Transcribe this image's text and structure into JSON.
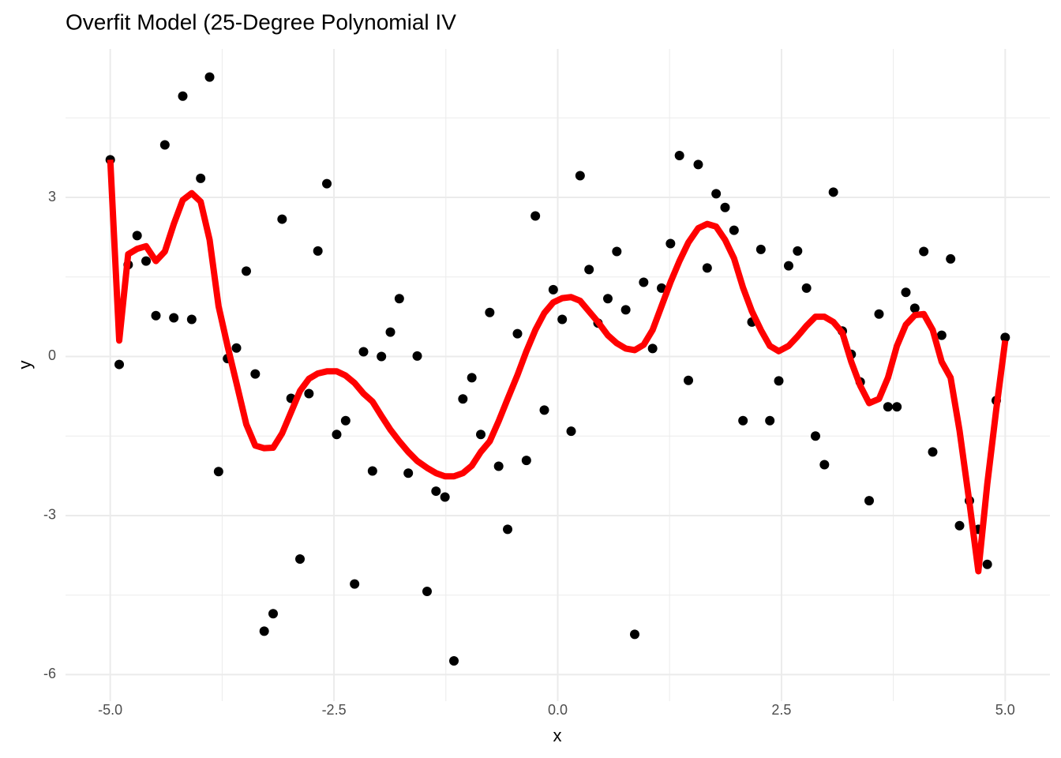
{
  "chart_data": {
    "type": "scatter",
    "title": "Overfit Model (25-Degree Polynomial IV",
    "x_label": "x",
    "y_label": "y",
    "x": [
      -5,
      -4.9,
      -4.8,
      -4.7,
      -4.6,
      -4.49,
      -4.39,
      -4.29,
      -4.19,
      -4.09,
      -3.99,
      -3.89,
      -3.79,
      -3.69,
      -3.59,
      -3.48,
      -3.38,
      -3.28,
      -3.18,
      -3.08,
      -2.98,
      -2.88,
      -2.78,
      -2.68,
      -2.58,
      -2.47,
      -2.37,
      -2.27,
      -2.17,
      -2.07,
      -1.97,
      -1.87,
      -1.77,
      -1.67,
      -1.57,
      -1.46,
      -1.36,
      -1.26,
      -1.16,
      -1.06,
      -0.96,
      -0.86,
      -0.76,
      -0.66,
      -0.56,
      -0.45,
      -0.35,
      -0.25,
      -0.15,
      -0.05,
      0.05,
      0.15,
      0.25,
      0.35,
      0.45,
      0.56,
      0.66,
      0.76,
      0.86,
      0.96,
      1.06,
      1.16,
      1.26,
      1.36,
      1.46,
      1.57,
      1.67,
      1.77,
      1.87,
      1.97,
      2.07,
      2.17,
      2.27,
      2.37,
      2.47,
      2.58,
      2.68,
      2.78,
      2.88,
      2.98,
      3.08,
      3.18,
      3.28,
      3.38,
      3.48,
      3.59,
      3.69,
      3.79,
      3.89,
      3.99,
      4.09,
      4.19,
      4.29,
      4.39,
      4.49,
      4.6,
      4.7,
      4.8,
      4.9,
      5
    ],
    "series": [
      {
        "type": "scatter",
        "color": "#000000",
        "values": [
          3.71,
          -0.15,
          1.73,
          2.28,
          1.8,
          0.77,
          3.99,
          0.73,
          4.91,
          0.7,
          3.36,
          5.27,
          -2.17,
          -0.04,
          0.16,
          1.61,
          -0.33,
          -5.18,
          -4.85,
          2.59,
          -0.79,
          -3.82,
          -0.7,
          1.99,
          3.26,
          -1.47,
          -1.21,
          -4.29,
          0.09,
          -2.16,
          0.0,
          0.46,
          1.09,
          -2.2,
          0.01,
          -4.43,
          -2.54,
          -2.65,
          -5.74,
          -0.8,
          -0.4,
          -1.47,
          0.83,
          -2.07,
          -3.26,
          0.43,
          -1.96,
          2.65,
          -1.01,
          1.26,
          0.7,
          -1.41,
          3.41,
          1.64,
          0.63,
          1.09,
          1.98,
          0.88,
          -5.24,
          1.4,
          0.15,
          1.29,
          2.13,
          3.79,
          -0.45,
          3.62,
          1.67,
          3.07,
          2.81,
          2.38,
          -1.21,
          0.65,
          2.02,
          -1.21,
          -0.46,
          1.71,
          1.99,
          1.29,
          -1.5,
          -2.04,
          3.1,
          0.48,
          0.04,
          -0.48,
          -2.72,
          0.8,
          -0.95,
          -0.95,
          1.21,
          0.91,
          1.98,
          -1.8,
          0.4,
          1.84,
          -3.19,
          -2.72,
          -3.26,
          -3.92,
          -0.83,
          0.36
        ]
      },
      {
        "type": "line",
        "color": "#ff0000",
        "values": [
          3.71,
          0.3,
          1.93,
          2.03,
          2.08,
          1.8,
          1.98,
          2.5,
          2.95,
          3.08,
          2.92,
          2.2,
          0.95,
          0.2,
          -0.5,
          -1.28,
          -1.68,
          -1.73,
          -1.72,
          -1.45,
          -1.05,
          -0.65,
          -0.42,
          -0.32,
          -0.28,
          -0.28,
          -0.36,
          -0.5,
          -0.7,
          -0.85,
          -1.12,
          -1.38,
          -1.6,
          -1.8,
          -1.97,
          -2.1,
          -2.2,
          -2.26,
          -2.26,
          -2.2,
          -2.06,
          -1.8,
          -1.6,
          -1.22,
          -0.8,
          -0.35,
          0.1,
          0.5,
          0.82,
          1.02,
          1.1,
          1.12,
          1.05,
          0.85,
          0.65,
          0.4,
          0.25,
          0.15,
          0.12,
          0.22,
          0.5,
          0.95,
          1.4,
          1.8,
          2.15,
          2.42,
          2.5,
          2.45,
          2.2,
          1.85,
          1.3,
          0.85,
          0.5,
          0.2,
          0.1,
          0.2,
          0.38,
          0.58,
          0.75,
          0.75,
          0.65,
          0.45,
          -0.1,
          -0.55,
          -0.88,
          -0.8,
          -0.4,
          0.2,
          0.6,
          0.78,
          0.8,
          0.5,
          -0.1,
          -0.4,
          -1.4,
          -2.75,
          -4.05,
          -2.4,
          -1.0,
          0.3
        ]
      }
    ],
    "xlim": [
      -5.5,
      5.5
    ],
    "ylim": [
      -6.5,
      5.8
    ],
    "xticks": [
      {
        "value": -5,
        "label": "-5.0"
      },
      {
        "value": -2.5,
        "label": "-2.5"
      },
      {
        "value": 0,
        "label": "0.0"
      },
      {
        "value": 2.5,
        "label": "2.5"
      },
      {
        "value": 5,
        "label": "5.0"
      }
    ],
    "yticks": [
      -6,
      -3,
      0,
      3
    ],
    "x_minor_ticks": [
      -3.75,
      -1.25,
      1.25,
      3.75
    ],
    "y_minor_ticks": [
      -4.5,
      -1.5,
      1.5,
      4.5
    ],
    "grid": true
  }
}
